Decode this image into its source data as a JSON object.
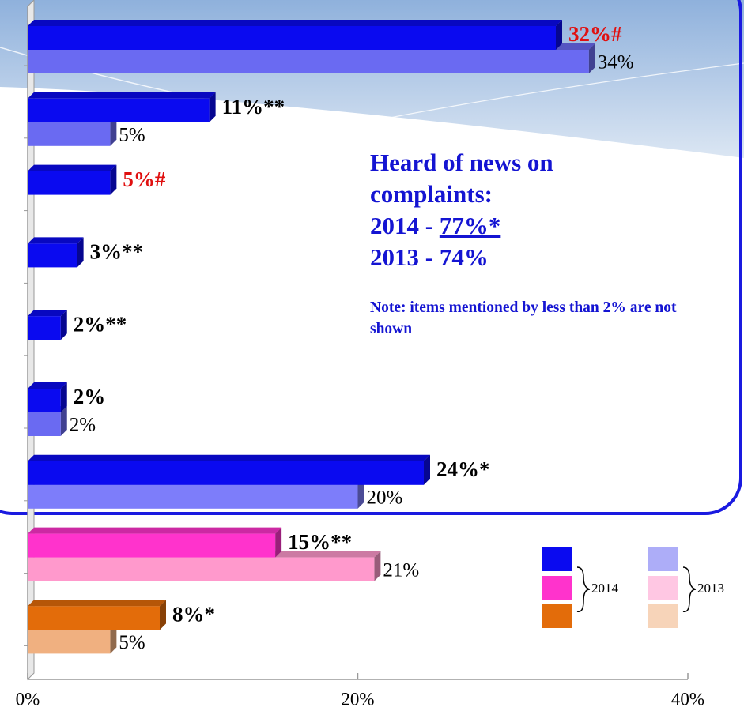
{
  "chart_data": {
    "type": "bar",
    "orientation": "horizontal",
    "categories": [
      null,
      null,
      null,
      null,
      null,
      null,
      null,
      null,
      null
    ],
    "series": [
      {
        "name": "2014",
        "colors": [
          "#0a0af0",
          "#0a0af0",
          "#0a0af0",
          "#0a0af0",
          "#0a0af0",
          "#0a0af0",
          "#0a0af0",
          "#ff33cc",
          "#e36c0a"
        ],
        "values": [
          32,
          11,
          5,
          3,
          2,
          2,
          24,
          15,
          8
        ],
        "value_labels": [
          "32%#",
          "11%**",
          "5%#",
          "3%**",
          "2%**",
          "2%",
          "24%*",
          "15%**",
          "8%*"
        ],
        "value_label_colors": [
          "#e01010",
          "#000000",
          "#e01010",
          "#000000",
          "#000000",
          "#000000",
          "#000000",
          "#000000",
          "#000000"
        ]
      },
      {
        "name": "2013",
        "colors": [
          "#6a6af2",
          "#6a6af2",
          "#6a6af2",
          "#6a6af2",
          "#6a6af2",
          "#6a6af2",
          "#7d7dfa",
          "#ff99cc",
          "#f0b080"
        ],
        "values": [
          34,
          5,
          null,
          null,
          null,
          2,
          20,
          21,
          5
        ],
        "value_labels": [
          "34%",
          "5%",
          null,
          null,
          null,
          "2%",
          "20%",
          "21%",
          "5%"
        ]
      }
    ],
    "xlim": [
      0,
      40
    ],
    "xticks": [
      {
        "value": 0,
        "label": "0%"
      },
      {
        "value": 20,
        "label": "20%"
      },
      {
        "value": 40,
        "label": "40%"
      }
    ],
    "annotation": {
      "title": "Heard of news on complaints:",
      "lines": [
        {
          "label": "2014 - ",
          "value": "77%*"
        },
        {
          "label": "2013 - ",
          "value": "74%"
        }
      ],
      "note": "Note: items mentioned by less than 2% are not shown",
      "color": "#1414d2"
    }
  }
}
